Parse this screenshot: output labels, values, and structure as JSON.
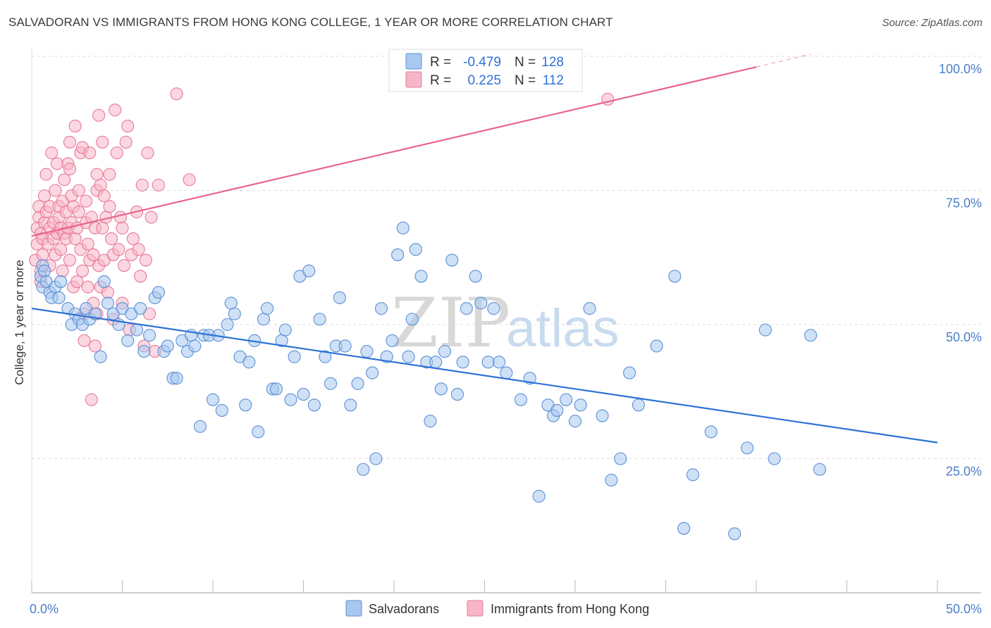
{
  "title": "SALVADORAN VS IMMIGRANTS FROM HONG KONG COLLEGE, 1 YEAR OR MORE CORRELATION CHART",
  "source": "Source: ZipAtlas.com",
  "watermark": {
    "zip": "ZIP",
    "atlas": "atlas"
  },
  "colors": {
    "blue_fill": "#a8c8f0",
    "blue_stroke": "#5b8fd6",
    "blue_line": "#2f72d6",
    "pink_fill": "#f7b6c8",
    "pink_stroke": "#e8799a",
    "pink_line": "#e8658c",
    "grid": "#dddddd",
    "tick_label": "#4a7ec9"
  },
  "legend": {
    "rows": [
      {
        "r_label": "R =",
        "r_value": "-0.479",
        "n_label": "N =",
        "n_value": "128"
      },
      {
        "r_label": "R =",
        "r_value": "0.225",
        "n_label": "N =",
        "n_value": "112"
      }
    ]
  },
  "bottom_legend": [
    "Salvadorans",
    "Immigrants from Hong Kong"
  ],
  "chart_data": {
    "type": "scatter",
    "xlabel": "",
    "ylabel": "College, 1 year or more",
    "xlim": [
      0,
      50
    ],
    "ylim": [
      0,
      100
    ],
    "x_tick_labels": [
      {
        "value": 0,
        "label": "0.0%"
      },
      {
        "value": 50,
        "label": "50.0%"
      }
    ],
    "y_tick_labels": [
      {
        "value": 100,
        "label": "100.0%"
      },
      {
        "value": 75,
        "label": "75.0%"
      },
      {
        "value": 50,
        "label": "50.0%"
      },
      {
        "value": 25,
        "label": "25.0%"
      }
    ],
    "series": [
      {
        "name": "Salvadorans",
        "color": "#a8c8f0",
        "R": -0.479,
        "N": 128,
        "trend": {
          "x": [
            0,
            50
          ],
          "y": [
            53.0,
            28.0
          ]
        },
        "points": [
          [
            0.5,
            59
          ],
          [
            0.6,
            61
          ],
          [
            0.6,
            57
          ],
          [
            0.7,
            60
          ],
          [
            0.8,
            58
          ],
          [
            1.0,
            56
          ],
          [
            1.1,
            55
          ],
          [
            1.3,
            57
          ],
          [
            1.5,
            55
          ],
          [
            1.6,
            58
          ],
          [
            2.0,
            53
          ],
          [
            2.2,
            50
          ],
          [
            2.4,
            52
          ],
          [
            2.6,
            51
          ],
          [
            2.8,
            50
          ],
          [
            3.0,
            53
          ],
          [
            3.2,
            51
          ],
          [
            3.5,
            52
          ],
          [
            3.8,
            44
          ],
          [
            4.0,
            58
          ],
          [
            4.2,
            54
          ],
          [
            4.5,
            52
          ],
          [
            4.8,
            50
          ],
          [
            5.0,
            53
          ],
          [
            5.3,
            47
          ],
          [
            5.5,
            52
          ],
          [
            5.8,
            49
          ],
          [
            6.0,
            53
          ],
          [
            6.2,
            45
          ],
          [
            6.5,
            48
          ],
          [
            6.8,
            55
          ],
          [
            7.0,
            56
          ],
          [
            7.3,
            45
          ],
          [
            7.5,
            46
          ],
          [
            7.8,
            40
          ],
          [
            8.0,
            40
          ],
          [
            8.3,
            47
          ],
          [
            8.6,
            45
          ],
          [
            8.8,
            48
          ],
          [
            9.0,
            46
          ],
          [
            9.3,
            31
          ],
          [
            9.5,
            48
          ],
          [
            9.8,
            48
          ],
          [
            10.0,
            36
          ],
          [
            10.3,
            48
          ],
          [
            10.5,
            34
          ],
          [
            10.8,
            50
          ],
          [
            11.0,
            54
          ],
          [
            11.2,
            52
          ],
          [
            11.5,
            44
          ],
          [
            11.8,
            35
          ],
          [
            12.0,
            43
          ],
          [
            12.3,
            47
          ],
          [
            12.5,
            30
          ],
          [
            12.8,
            51
          ],
          [
            13.0,
            53
          ],
          [
            13.3,
            38
          ],
          [
            13.5,
            38
          ],
          [
            13.8,
            47
          ],
          [
            14.0,
            49
          ],
          [
            14.3,
            36
          ],
          [
            14.5,
            44
          ],
          [
            14.8,
            59
          ],
          [
            15.0,
            37
          ],
          [
            15.3,
            60
          ],
          [
            15.6,
            35
          ],
          [
            15.9,
            51
          ],
          [
            16.2,
            44
          ],
          [
            16.5,
            39
          ],
          [
            16.8,
            46
          ],
          [
            17.0,
            55
          ],
          [
            17.3,
            46
          ],
          [
            17.6,
            35
          ],
          [
            18.0,
            39
          ],
          [
            18.3,
            23
          ],
          [
            18.5,
            45
          ],
          [
            18.8,
            41
          ],
          [
            19.0,
            25
          ],
          [
            19.3,
            53
          ],
          [
            19.6,
            44
          ],
          [
            19.9,
            47
          ],
          [
            20.2,
            63
          ],
          [
            20.5,
            68
          ],
          [
            20.8,
            44
          ],
          [
            21.0,
            51
          ],
          [
            21.2,
            64
          ],
          [
            21.5,
            59
          ],
          [
            21.8,
            43
          ],
          [
            22.0,
            32
          ],
          [
            22.3,
            43
          ],
          [
            22.6,
            38
          ],
          [
            22.8,
            45
          ],
          [
            23.2,
            62
          ],
          [
            23.5,
            37
          ],
          [
            23.8,
            43
          ],
          [
            24.0,
            53
          ],
          [
            24.5,
            59
          ],
          [
            24.8,
            54
          ],
          [
            25.2,
            43
          ],
          [
            25.5,
            53
          ],
          [
            25.8,
            43
          ],
          [
            26.2,
            41
          ],
          [
            27.0,
            36
          ],
          [
            27.5,
            40
          ],
          [
            28.0,
            18
          ],
          [
            28.5,
            35
          ],
          [
            28.8,
            33
          ],
          [
            29.0,
            34
          ],
          [
            29.5,
            36
          ],
          [
            30.0,
            32
          ],
          [
            30.3,
            35
          ],
          [
            30.8,
            53
          ],
          [
            31.5,
            33
          ],
          [
            32.5,
            25
          ],
          [
            33.0,
            41
          ],
          [
            33.5,
            35
          ],
          [
            34.5,
            46
          ],
          [
            35.5,
            59
          ],
          [
            36.0,
            12
          ],
          [
            36.5,
            22
          ],
          [
            37.5,
            30
          ],
          [
            38.8,
            11
          ],
          [
            39.5,
            27
          ],
          [
            40.5,
            49
          ],
          [
            41.0,
            25
          ],
          [
            43.0,
            48
          ],
          [
            43.5,
            23
          ],
          [
            32.0,
            21
          ]
        ]
      },
      {
        "name": "Immigrants from Hong Kong",
        "color": "#f7b6c8",
        "R": 0.225,
        "N": 112,
        "trend": {
          "x": [
            0,
            40
          ],
          "y": [
            66.5,
            98.0
          ]
        },
        "trend_dashed": {
          "x": [
            40,
            43
          ],
          "y": [
            98.0,
            100.4
          ]
        },
        "points": [
          [
            0.2,
            62
          ],
          [
            0.3,
            65
          ],
          [
            0.3,
            68
          ],
          [
            0.4,
            70
          ],
          [
            0.4,
            72
          ],
          [
            0.5,
            67
          ],
          [
            0.5,
            60
          ],
          [
            0.5,
            58
          ],
          [
            0.6,
            66
          ],
          [
            0.6,
            63
          ],
          [
            0.7,
            69
          ],
          [
            0.7,
            74
          ],
          [
            0.8,
            78
          ],
          [
            0.8,
            71
          ],
          [
            0.9,
            65
          ],
          [
            1.0,
            68
          ],
          [
            1.0,
            61
          ],
          [
            1.0,
            72
          ],
          [
            1.1,
            82
          ],
          [
            1.2,
            69
          ],
          [
            1.2,
            66
          ],
          [
            1.3,
            75
          ],
          [
            1.3,
            63
          ],
          [
            1.4,
            80
          ],
          [
            1.4,
            67
          ],
          [
            1.5,
            70
          ],
          [
            1.5,
            72
          ],
          [
            1.6,
            68
          ],
          [
            1.6,
            64
          ],
          [
            1.7,
            60
          ],
          [
            1.7,
            73
          ],
          [
            1.8,
            67
          ],
          [
            1.8,
            77
          ],
          [
            1.9,
            71
          ],
          [
            1.9,
            66
          ],
          [
            2.0,
            68
          ],
          [
            2.0,
            80
          ],
          [
            2.1,
            79
          ],
          [
            2.1,
            62
          ],
          [
            2.2,
            69
          ],
          [
            2.2,
            74
          ],
          [
            2.3,
            72
          ],
          [
            2.3,
            57
          ],
          [
            2.4,
            87
          ],
          [
            2.4,
            66
          ],
          [
            2.5,
            68
          ],
          [
            2.5,
            58
          ],
          [
            2.6,
            75
          ],
          [
            2.6,
            71
          ],
          [
            2.7,
            82
          ],
          [
            2.7,
            64
          ],
          [
            2.8,
            83
          ],
          [
            2.8,
            60
          ],
          [
            2.9,
            52
          ],
          [
            2.9,
            47
          ],
          [
            3.0,
            69
          ],
          [
            3.0,
            73
          ],
          [
            3.1,
            57
          ],
          [
            3.1,
            65
          ],
          [
            3.2,
            82
          ],
          [
            3.2,
            62
          ],
          [
            3.3,
            36
          ],
          [
            3.3,
            70
          ],
          [
            3.4,
            63
          ],
          [
            3.4,
            54
          ],
          [
            3.5,
            68
          ],
          [
            3.5,
            46
          ],
          [
            3.6,
            75
          ],
          [
            3.6,
            52
          ],
          [
            3.7,
            89
          ],
          [
            3.7,
            61
          ],
          [
            3.8,
            57
          ],
          [
            3.8,
            76
          ],
          [
            3.9,
            84
          ],
          [
            3.9,
            68
          ],
          [
            4.0,
            74
          ],
          [
            4.0,
            62
          ],
          [
            4.1,
            70
          ],
          [
            4.2,
            56
          ],
          [
            4.3,
            72
          ],
          [
            4.3,
            78
          ],
          [
            4.5,
            63
          ],
          [
            4.5,
            51
          ],
          [
            4.6,
            90
          ],
          [
            4.7,
            82
          ],
          [
            4.8,
            64
          ],
          [
            4.9,
            70
          ],
          [
            5.0,
            54
          ],
          [
            5.0,
            68
          ],
          [
            5.1,
            61
          ],
          [
            5.2,
            84
          ],
          [
            5.3,
            87
          ],
          [
            5.4,
            49
          ],
          [
            5.5,
            63
          ],
          [
            5.6,
            66
          ],
          [
            5.8,
            71
          ],
          [
            5.9,
            64
          ],
          [
            6.0,
            59
          ],
          [
            6.1,
            76
          ],
          [
            6.2,
            46
          ],
          [
            6.3,
            62
          ],
          [
            6.4,
            82
          ],
          [
            6.5,
            52
          ],
          [
            6.6,
            70
          ],
          [
            6.8,
            45
          ],
          [
            7.0,
            76
          ],
          [
            8.0,
            93
          ],
          [
            8.7,
            77
          ],
          [
            2.1,
            84
          ],
          [
            4.4,
            66
          ],
          [
            31.8,
            92
          ],
          [
            3.6,
            78
          ]
        ]
      }
    ]
  }
}
